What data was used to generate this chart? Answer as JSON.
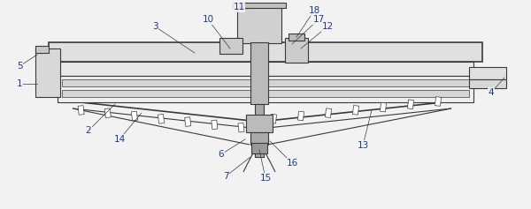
{
  "fig_width": 6.0,
  "fig_height": 2.37,
  "dpi": 100,
  "bg_color": "#f2f2f2",
  "line_color": "#3a3a3a",
  "label_color": "#1a3a8a",
  "line_width": 0.8,
  "thin_line": 0.5,
  "thick_line": 1.2,
  "font_size": 7.5
}
